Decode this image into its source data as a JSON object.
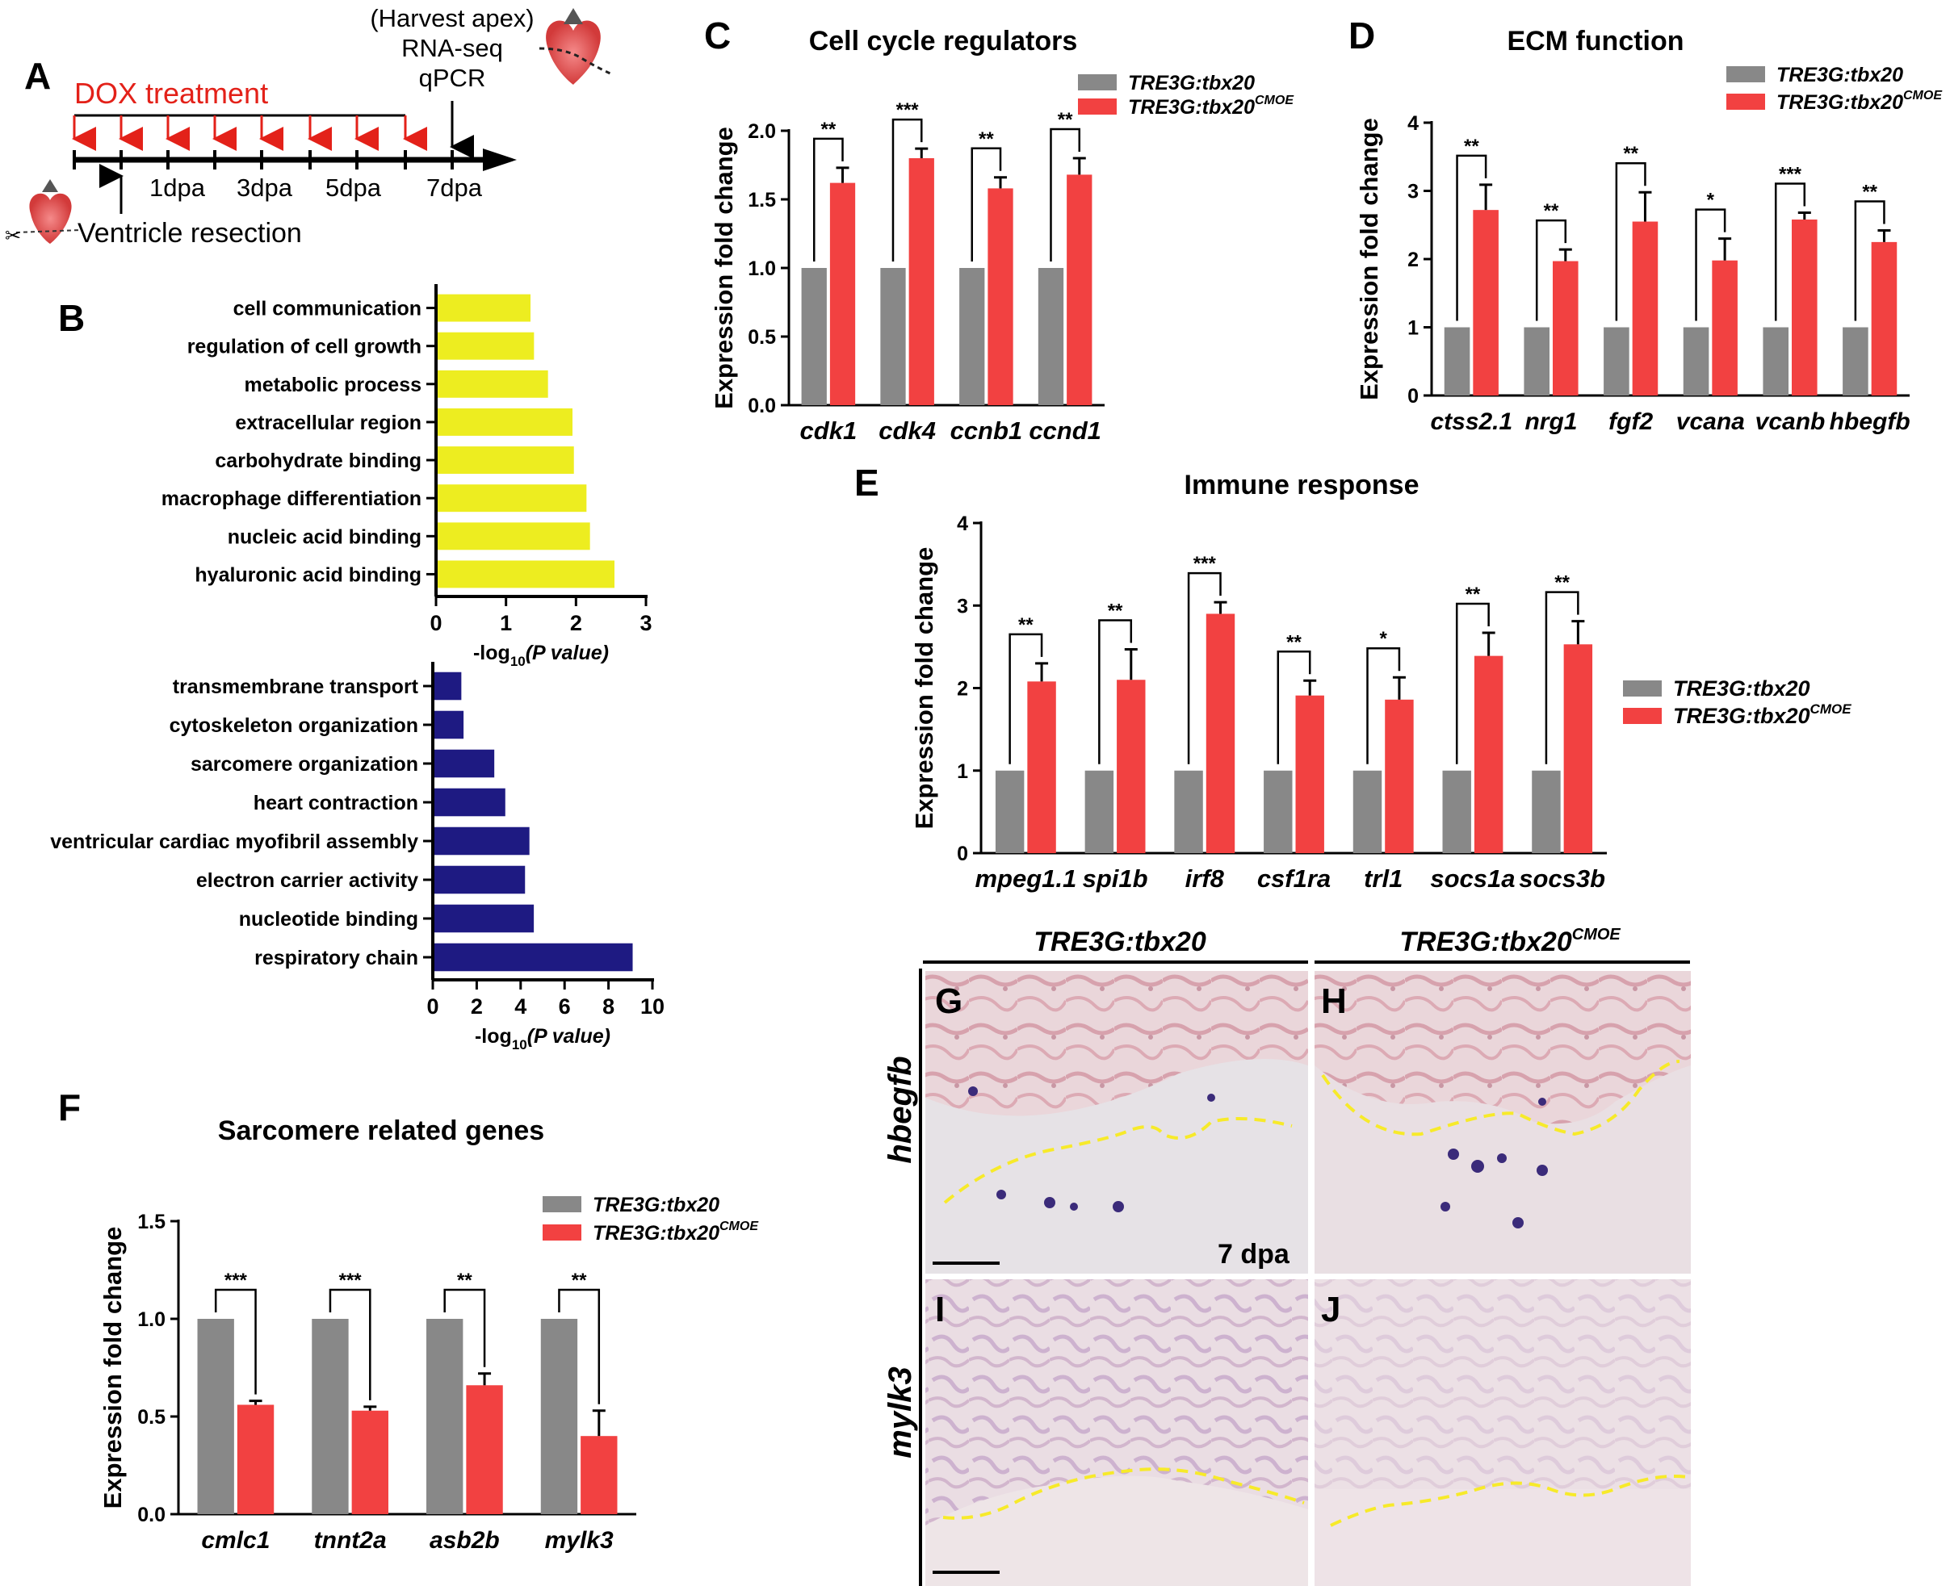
{
  "colors": {
    "control": "#888888",
    "cmoe": "#f24141",
    "go_up": "#eded20",
    "go_down": "#1e1a82",
    "arrow_red": "#e32119",
    "dashed": "#f7ea2a",
    "tissue_bg": "#e9d8db",
    "tissue_pink": "#d79aa6",
    "tissue_stain": "#3b2b7a"
  },
  "panel_letters": {
    "A": "A",
    "B": "B",
    "C": "C",
    "D": "D",
    "E": "E",
    "F": "F",
    "G": "G",
    "H": "H",
    "I": "I",
    "J": "J"
  },
  "legend": {
    "control": "TRE3G:tbx20",
    "cmoe_base": "TRE3G:tbx20",
    "cmoe_sup": "CMOE"
  },
  "panel_a": {
    "dox_label": "DOX treatment",
    "harvest_label": "(Harvest apex)",
    "rnaseq_label": "RNA-seq",
    "qpcr_label": "qPCR",
    "resection_label": "Ventricle resection",
    "day_labels": [
      "1dpa",
      "3dpa",
      "5dpa",
      "7dpa"
    ]
  },
  "chart_data": [
    {
      "id": "B_upregulated",
      "type": "bar",
      "orientation": "horizontal",
      "categories": [
        "cell communication",
        "regulation of cell growth",
        "metabolic process",
        "extracellular region",
        "carbohydrate binding",
        "macrophage differentiation",
        "nucleic acid binding",
        "hyaluronic acid binding"
      ],
      "values": [
        1.35,
        1.4,
        1.6,
        1.95,
        1.97,
        2.15,
        2.2,
        2.55
      ],
      "xlim": [
        0,
        3
      ],
      "xticks": [
        "0",
        "1",
        "2",
        "3"
      ],
      "xlabel_main": "-log",
      "xlabel_sub": "10",
      "xlabel_paren": "(P value)"
    },
    {
      "id": "B_downregulated",
      "type": "bar",
      "orientation": "horizontal",
      "categories": [
        "transmembrane transport",
        "cytoskeleton organization",
        "sarcomere organization",
        "heart contraction",
        "ventricular cardiac myofibril assembly",
        "electron carrier activity",
        "nucleotide binding",
        "respiratory chain"
      ],
      "values": [
        1.3,
        1.4,
        2.8,
        3.3,
        4.4,
        4.2,
        4.6,
        9.1
      ],
      "xlim": [
        0,
        10
      ],
      "xticks": [
        "0",
        "2",
        "4",
        "6",
        "8",
        "10"
      ],
      "xlabel_main": "-log",
      "xlabel_sub": "10",
      "xlabel_paren": "(P value)"
    },
    {
      "id": "C",
      "type": "bar",
      "title": "Cell cycle regulators",
      "ylabel": "Expression fold change",
      "categories": [
        "cdk1",
        "cdk4",
        "ccnb1",
        "ccnd1"
      ],
      "series": [
        {
          "name": "TRE3G:tbx20",
          "values": [
            1.0,
            1.0,
            1.0,
            1.0
          ],
          "errors": [
            0,
            0,
            0,
            0
          ]
        },
        {
          "name": "TRE3G:tbx20CMOE",
          "values": [
            1.62,
            1.8,
            1.58,
            1.68
          ],
          "errors": [
            0.11,
            0.07,
            0.08,
            0.12
          ]
        }
      ],
      "significance": [
        "**",
        "***",
        "**",
        "**"
      ],
      "ylim": [
        0,
        2.0
      ],
      "yticks": [
        "0.0",
        "0.5",
        "1.0",
        "1.5",
        "2.0"
      ]
    },
    {
      "id": "D",
      "type": "bar",
      "title": "ECM function",
      "ylabel": "Expression fold change",
      "categories": [
        "ctss2.1",
        "nrg1",
        "fgf2",
        "vcana",
        "vcanb",
        "hbegfb"
      ],
      "series": [
        {
          "name": "TRE3G:tbx20",
          "values": [
            1,
            1,
            1,
            1,
            1,
            1
          ],
          "errors": [
            0,
            0,
            0,
            0,
            0,
            0
          ]
        },
        {
          "name": "TRE3G:tbx20CMOE",
          "values": [
            2.72,
            1.97,
            2.55,
            1.98,
            2.58,
            2.25
          ],
          "errors": [
            0.37,
            0.17,
            0.43,
            0.32,
            0.1,
            0.17
          ]
        }
      ],
      "significance": [
        "**",
        "**",
        "**",
        "*",
        "***",
        "**"
      ],
      "ylim": [
        0,
        4
      ],
      "yticks": [
        "0",
        "1",
        "2",
        "3",
        "4"
      ]
    },
    {
      "id": "E",
      "type": "bar",
      "title": "Immune response",
      "ylabel": "Expression fold change",
      "categories": [
        "mpeg1.1",
        "spi1b",
        "irf8",
        "csf1ra",
        "trl1",
        "socs1a",
        "socs3b"
      ],
      "series": [
        {
          "name": "TRE3G:tbx20",
          "values": [
            1,
            1,
            1,
            1,
            1,
            1,
            1
          ],
          "errors": [
            0,
            0,
            0,
            0,
            0,
            0,
            0
          ]
        },
        {
          "name": "TRE3G:tbx20CMOE",
          "values": [
            2.08,
            2.1,
            2.9,
            1.91,
            1.86,
            2.39,
            2.53
          ],
          "errors": [
            0.22,
            0.37,
            0.14,
            0.18,
            0.27,
            0.28,
            0.28
          ]
        }
      ],
      "significance": [
        "**",
        "**",
        "***",
        "**",
        "*",
        "**",
        "**"
      ],
      "ylim": [
        0,
        4
      ],
      "yticks": [
        "0",
        "1",
        "2",
        "3",
        "4"
      ]
    },
    {
      "id": "F",
      "type": "bar",
      "title": "Sarcomere related genes",
      "ylabel": "Expression fold change",
      "categories": [
        "cmlc1",
        "tnnt2a",
        "asb2b",
        "mylk3"
      ],
      "series": [
        {
          "name": "TRE3G:tbx20",
          "values": [
            1,
            1,
            1,
            1
          ],
          "errors": [
            0,
            0,
            0,
            0
          ]
        },
        {
          "name": "TRE3G:tbx20CMOE",
          "values": [
            0.56,
            0.53,
            0.66,
            0.4
          ],
          "errors": [
            0.02,
            0.02,
            0.06,
            0.13
          ]
        }
      ],
      "significance": [
        "***",
        "***",
        "**",
        "**"
      ],
      "ylim": [
        0,
        1.5
      ],
      "yticks": [
        "0.0",
        "0.5",
        "1.0",
        "1.5"
      ]
    }
  ],
  "histology": {
    "col_left": "TRE3G:tbx20",
    "col_right_base": "TRE3G:tbx20",
    "col_right_sup": "CMOE",
    "row_top": "hbegfb",
    "row_bottom": "mylk3",
    "timepoint": "7 dpa"
  }
}
